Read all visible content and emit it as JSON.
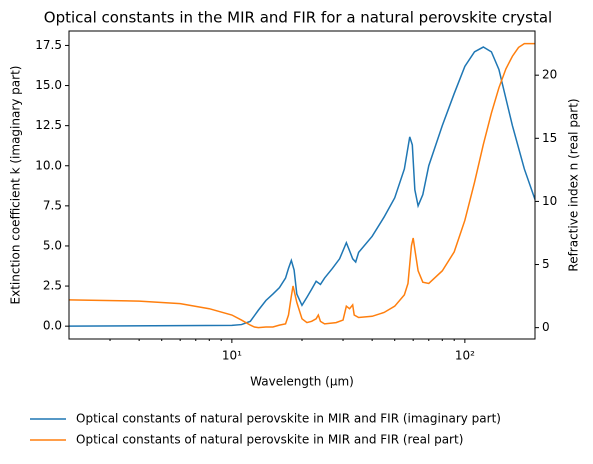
{
  "chart_data": {
    "type": "line",
    "title": "Optical constants in the MIR and FIR for a natural perovskite crystal",
    "xlabel": "Wavelength (μm)",
    "ylabel": "Extinction coefficient k (imaginary part)",
    "y2label": "Refractive index n (real part)",
    "xscale": "log",
    "xlim": [
      2,
      200
    ],
    "xticks": [
      {
        "value": 10,
        "label": "10¹"
      },
      {
        "value": 100,
        "label": "10²"
      }
    ],
    "ylim": [
      -0.8,
      18.4
    ],
    "yticks": [
      {
        "value": 0,
        "label": "0.0"
      },
      2.5,
      {
        "value": 5,
        "label": "5.0"
      },
      7.5,
      {
        "value": 10,
        "label": "10.0"
      },
      12.5,
      {
        "value": 15,
        "label": "15.0"
      },
      17.5
    ],
    "y2lim": [
      -0.9,
      23.5
    ],
    "y2ticks": [
      0,
      5,
      10,
      15,
      20
    ],
    "grid": false,
    "legend": "below",
    "series": [
      {
        "name": "Optical constants of natural perovskite in MIR and FIR (imaginary part)",
        "color": "#1f77b4",
        "axis": "y",
        "x": [
          2,
          10,
          11,
          12,
          13,
          14,
          15,
          16,
          17,
          17.5,
          18,
          18.5,
          19,
          20,
          21,
          22,
          23,
          24,
          25,
          27,
          29,
          31,
          32,
          33,
          34,
          35,
          40,
          45,
          50,
          55,
          58,
          59.5,
          61,
          63,
          66,
          70,
          80,
          90,
          100,
          110,
          120,
          130,
          140,
          160,
          180,
          200
        ],
        "values": [
          0,
          0.05,
          0.1,
          0.3,
          1.0,
          1.6,
          2.0,
          2.4,
          3.0,
          3.6,
          4.1,
          3.5,
          2.0,
          1.3,
          1.8,
          2.3,
          2.8,
          2.6,
          3.0,
          3.6,
          4.2,
          5.2,
          4.7,
          4.2,
          4.0,
          4.6,
          5.6,
          6.8,
          8.0,
          9.8,
          11.8,
          11.3,
          8.5,
          7.5,
          8.2,
          10.0,
          12.5,
          14.5,
          16.2,
          17.1,
          17.4,
          17.1,
          16.0,
          12.5,
          9.8,
          7.9
        ]
      },
      {
        "name": "Optical constants of natural perovskite in MIR and FIR (real part)",
        "color": "#ff7f0e",
        "axis": "y2",
        "x": [
          2,
          4,
          6,
          8,
          10,
          11,
          12,
          12.5,
          13,
          14,
          15,
          16,
          17,
          17.5,
          18,
          18.3,
          19,
          20,
          21,
          22,
          23,
          23.5,
          24,
          25,
          28,
          30,
          31,
          32,
          33,
          33.5,
          35,
          40,
          45,
          50,
          55,
          57,
          59,
          60,
          61,
          63,
          66,
          70,
          80,
          90,
          100,
          110,
          120,
          130,
          140,
          150,
          160,
          170,
          180,
          200
        ],
        "values": [
          2.2,
          2.1,
          1.9,
          1.5,
          1.0,
          0.6,
          0.2,
          0.05,
          0.0,
          0.05,
          0.05,
          0.2,
          0.3,
          1.0,
          2.5,
          3.3,
          2.0,
          0.7,
          0.4,
          0.5,
          0.7,
          1.0,
          0.5,
          0.3,
          0.4,
          0.6,
          1.7,
          1.5,
          1.8,
          1.0,
          0.8,
          0.9,
          1.2,
          1.7,
          2.6,
          3.5,
          6.5,
          7.1,
          6.2,
          4.5,
          3.6,
          3.5,
          4.5,
          6.0,
          8.5,
          11.5,
          14.5,
          17,
          19,
          20.5,
          21.5,
          22.2,
          22.5,
          22.5
        ]
      }
    ]
  }
}
